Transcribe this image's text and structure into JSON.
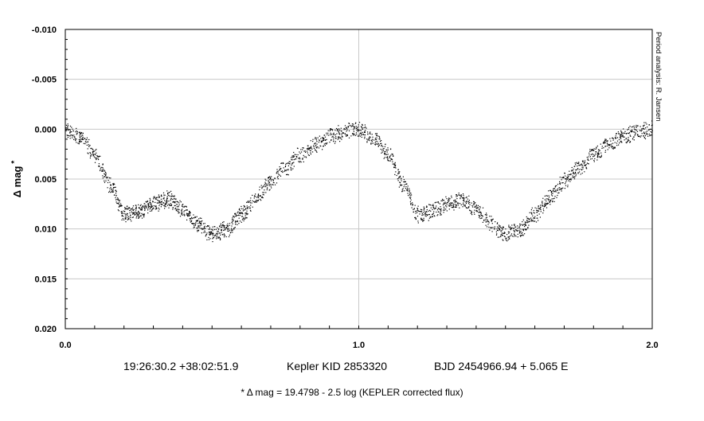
{
  "chart_data": {
    "type": "scatter",
    "title": "",
    "xlabel": "",
    "ylabel": "Δ mag",
    "ylabel_marker": "*",
    "xlim": [
      0.0,
      2.0
    ],
    "ylim": [
      -0.01,
      0.02
    ],
    "y_inverted": true,
    "x_ticks": [
      "0.0",
      "1.0",
      "2.0"
    ],
    "y_ticks": [
      "-0.010",
      "-0.005",
      "0.000",
      "0.005",
      "0.010",
      "0.015",
      "0.020"
    ],
    "grid": "major gridlines on",
    "marker": "small black dots",
    "scatter_halfwidth": 0.0007,
    "series": [
      {
        "x": [
          0.0,
          0.05,
          0.1,
          0.15,
          0.2,
          0.25,
          0.3,
          0.35,
          0.4,
          0.45,
          0.5,
          0.55,
          0.6,
          0.65,
          0.7,
          0.75,
          0.8,
          0.85,
          0.9,
          0.95,
          1.0,
          1.05,
          1.1,
          1.15,
          1.2,
          1.25,
          1.3,
          1.35,
          1.4,
          1.45,
          1.5,
          1.55,
          1.6,
          1.65,
          1.7,
          1.75,
          1.8,
          1.85,
          1.9,
          1.95,
          2.0
        ],
        "y": [
          0.0,
          0.0008,
          0.0025,
          0.0055,
          0.0085,
          0.0082,
          0.0075,
          0.007,
          0.008,
          0.0095,
          0.0105,
          0.01,
          0.0085,
          0.0068,
          0.0052,
          0.0038,
          0.0025,
          0.0015,
          0.0007,
          0.0002,
          0.0,
          0.0008,
          0.0025,
          0.0055,
          0.0085,
          0.0082,
          0.0075,
          0.007,
          0.008,
          0.0095,
          0.0105,
          0.01,
          0.0085,
          0.0068,
          0.0052,
          0.0038,
          0.0025,
          0.0015,
          0.0007,
          0.0002,
          0.0
        ]
      }
    ],
    "annotation": "Period analysis: R. Jansen"
  },
  "caption": {
    "coords": "19:26:30.2 +38:02:51.9",
    "target": "Kepler KID 2853320",
    "ephemeris": "BJD 2454966.94 + 5.065 E"
  },
  "footnote": "* Δ mag = 19.4798 - 2.5 log (KEPLER corrected flux)"
}
